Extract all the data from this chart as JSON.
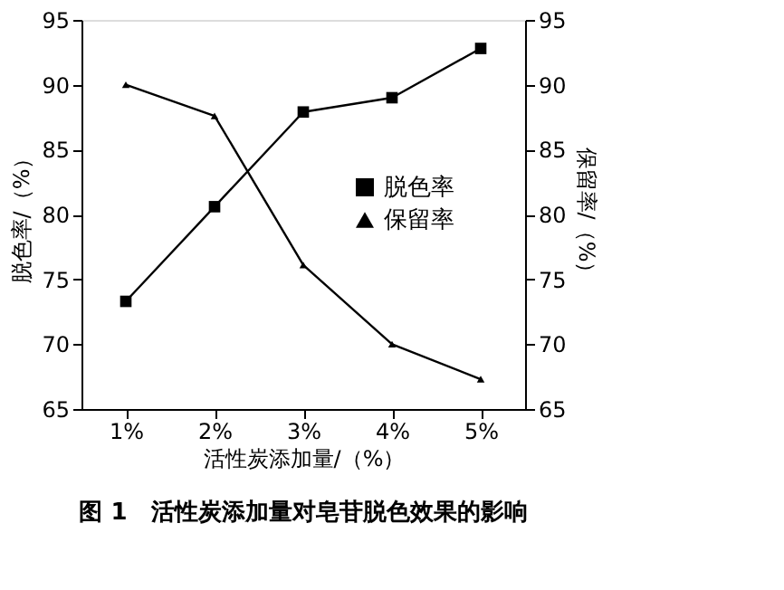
{
  "chart_data": {
    "type": "line",
    "title": "图 1　活性炭添加量对皂苷脱色效果的影响",
    "xlabel": "活性炭添加量/（%）",
    "ylabel": "脱色率/（%）",
    "y2label": "保留率/（%）",
    "categories": [
      "1%",
      "2%",
      "3%",
      "4%",
      "5%"
    ],
    "series": [
      {
        "name": "脱色率",
        "color": "#000000",
        "marker": "square",
        "values": [
          73.3,
          80.6,
          87.9,
          89.0,
          92.8
        ]
      },
      {
        "name": "保留率",
        "color": "#000000",
        "marker": "triangle",
        "axis": "y2",
        "values": [
          90.0,
          87.6,
          76.1,
          70.0,
          67.3
        ]
      }
    ],
    "ylim": [
      65,
      95
    ],
    "yticks": [
      65,
      70,
      75,
      80,
      85,
      90,
      95
    ],
    "y2lim": [
      65,
      95
    ],
    "y2ticks": [
      65,
      70,
      75,
      80,
      85,
      90,
      95
    ],
    "legend": "right",
    "grid": false
  }
}
